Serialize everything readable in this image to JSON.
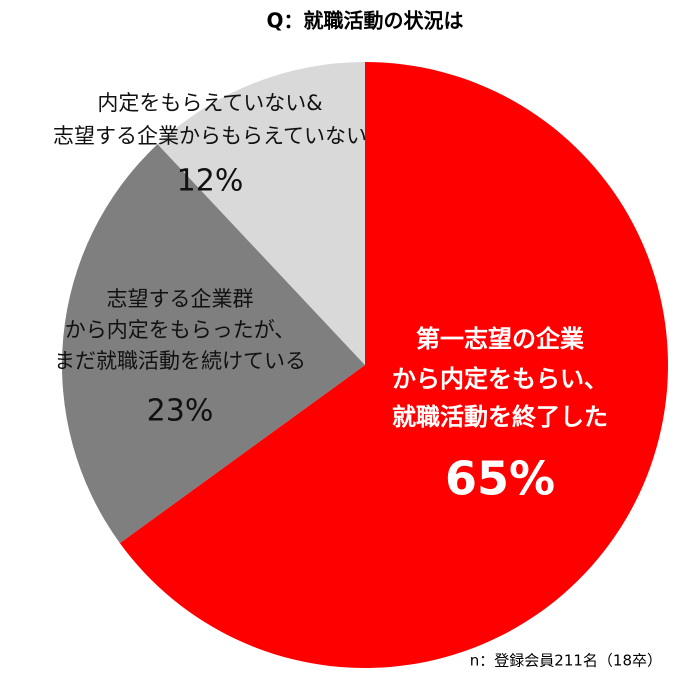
{
  "chart_data": {
    "type": "pie",
    "title": "Q：就職活動の状況は",
    "categories": [
      [
        "第一志望の企業",
        "から内定をもらい、",
        "就職活動を終了した"
      ],
      [
        "志望する企業群",
        "から内定をもらったが、",
        "まだ就職活動を続けている"
      ],
      [
        "内定をもらえていない&",
        "志望する企業からもらえていない"
      ]
    ],
    "values": [
      65,
      23,
      12
    ],
    "value_labels": [
      "65%",
      "23%",
      "12%"
    ],
    "colors": [
      "#ff0000",
      "#7f7f7f",
      "#d9d9d9"
    ],
    "note": "n：登録会員211名（18卒）"
  }
}
